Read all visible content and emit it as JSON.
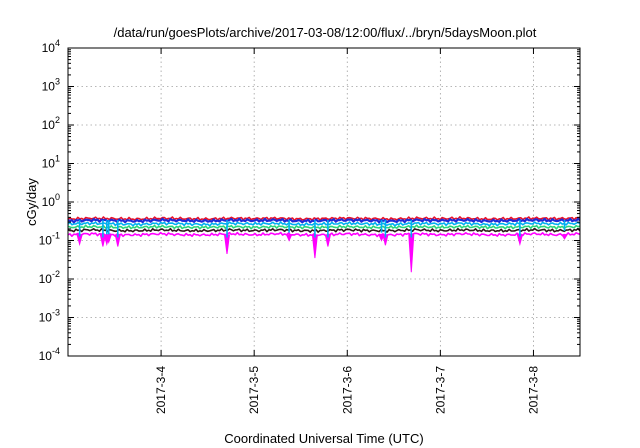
{
  "chart_data": {
    "type": "line",
    "title": "/data/run/goesPlots/archive/2017-03-08/12:00/flux/../bryn/5daysMoon.plot",
    "xlabel": "Coordinated Universal Time (UTC)",
    "ylabel": "cGy/day",
    "yscale": "log",
    "ylim": [
      0.0001,
      10000
    ],
    "xlim": [
      "2017-03-03T00:00",
      "2017-03-08T12:00"
    ],
    "y_ticks": [
      {
        "base": "10",
        "exp": "-4"
      },
      {
        "base": "10",
        "exp": "-3"
      },
      {
        "base": "10",
        "exp": "-2"
      },
      {
        "base": "10",
        "exp": "-1"
      },
      {
        "base": "10",
        "exp": "0"
      },
      {
        "base": "10",
        "exp": "1"
      },
      {
        "base": "10",
        "exp": "2"
      },
      {
        "base": "10",
        "exp": "3"
      },
      {
        "base": "10",
        "exp": "4"
      }
    ],
    "x_ticks": [
      {
        "date": "2017-03-04T00:00",
        "label": "2017-3-4"
      },
      {
        "date": "2017-03-05T00:00",
        "label": "2017-3-5"
      },
      {
        "date": "2017-03-06T00:00",
        "label": "2017-3-6"
      },
      {
        "date": "2017-03-07T00:00",
        "label": "2017-3-7"
      },
      {
        "date": "2017-03-08T00:00",
        "label": "2017-3-8"
      }
    ],
    "grid": true,
    "x": [
      "2017-03-03T00:00",
      "2017-03-03T06:00",
      "2017-03-03T12:00",
      "2017-03-03T18:00",
      "2017-03-04T00:00",
      "2017-03-04T06:00",
      "2017-03-04T12:00",
      "2017-03-04T18:00",
      "2017-03-05T00:00",
      "2017-03-05T06:00",
      "2017-03-05T12:00",
      "2017-03-05T18:00",
      "2017-03-06T00:00",
      "2017-03-06T06:00",
      "2017-03-06T12:00",
      "2017-03-06T18:00",
      "2017-03-07T00:00",
      "2017-03-07T06:00",
      "2017-03-07T12:00",
      "2017-03-07T18:00",
      "2017-03-08T00:00",
      "2017-03-08T06:00",
      "2017-03-08T12:00"
    ],
    "series": [
      {
        "color": "#e8112a",
        "values": [
          0.36,
          0.38,
          0.37,
          0.36,
          0.38,
          0.37,
          0.36,
          0.38,
          0.37,
          0.38,
          0.36,
          0.37,
          0.38,
          0.37,
          0.36,
          0.38,
          0.37,
          0.38,
          0.36,
          0.37,
          0.38,
          0.37,
          0.38
        ]
      },
      {
        "color": "#1f2bd6",
        "values": [
          0.32,
          0.34,
          0.33,
          0.32,
          0.34,
          0.33,
          0.32,
          0.34,
          0.33,
          0.34,
          0.32,
          0.33,
          0.34,
          0.33,
          0.32,
          0.34,
          0.33,
          0.34,
          0.32,
          0.33,
          0.34,
          0.33,
          0.34
        ]
      },
      {
        "color": "#00b0f0",
        "values": [
          0.27,
          0.28,
          0.27,
          0.26,
          0.28,
          0.27,
          0.26,
          0.28,
          0.27,
          0.28,
          0.26,
          0.27,
          0.28,
          0.27,
          0.26,
          0.28,
          0.27,
          0.28,
          0.26,
          0.27,
          0.28,
          0.27,
          0.28
        ]
      },
      {
        "color": "#2bd67a",
        "values": [
          0.22,
          0.23,
          0.22,
          0.22,
          0.23,
          0.22,
          0.22,
          0.23,
          0.22,
          0.23,
          0.22,
          0.22,
          0.23,
          0.22,
          0.22,
          0.23,
          0.22,
          0.23,
          0.22,
          0.22,
          0.23,
          0.22,
          0.23
        ]
      },
      {
        "color": "#2e1a1a",
        "values": [
          0.18,
          0.19,
          0.18,
          0.18,
          0.19,
          0.18,
          0.18,
          0.19,
          0.18,
          0.19,
          0.18,
          0.18,
          0.19,
          0.18,
          0.18,
          0.19,
          0.18,
          0.19,
          0.18,
          0.18,
          0.19,
          0.18,
          0.19
        ]
      },
      {
        "color": "#ff00ff",
        "values": [
          0.14,
          0.15,
          0.14,
          0.14,
          0.15,
          0.14,
          0.14,
          0.15,
          0.14,
          0.15,
          0.14,
          0.14,
          0.15,
          0.14,
          0.14,
          0.15,
          0.14,
          0.15,
          0.14,
          0.14,
          0.15,
          0.14,
          0.15
        ]
      }
    ],
    "dips": [
      {
        "date": "2017-03-03T03:00",
        "min": 0.08
      },
      {
        "date": "2017-03-03T09:00",
        "min": 0.07
      },
      {
        "date": "2017-03-03T10:00",
        "min": 0.08
      },
      {
        "date": "2017-03-03T10:30",
        "min": 0.09
      },
      {
        "date": "2017-03-03T12:50",
        "min": 0.07
      },
      {
        "date": "2017-03-04T17:00",
        "min": 0.045
      },
      {
        "date": "2017-03-05T09:00",
        "min": 0.1
      },
      {
        "date": "2017-03-05T15:40",
        "min": 0.035
      },
      {
        "date": "2017-03-05T19:00",
        "min": 0.07
      },
      {
        "date": "2017-03-06T08:50",
        "min": 0.1
      },
      {
        "date": "2017-03-06T09:50",
        "min": 0.075
      },
      {
        "date": "2017-03-06T16:30",
        "min": 0.015
      },
      {
        "date": "2017-03-07T20:30",
        "min": 0.08
      },
      {
        "date": "2017-03-08T08:00",
        "min": 0.11
      }
    ]
  }
}
